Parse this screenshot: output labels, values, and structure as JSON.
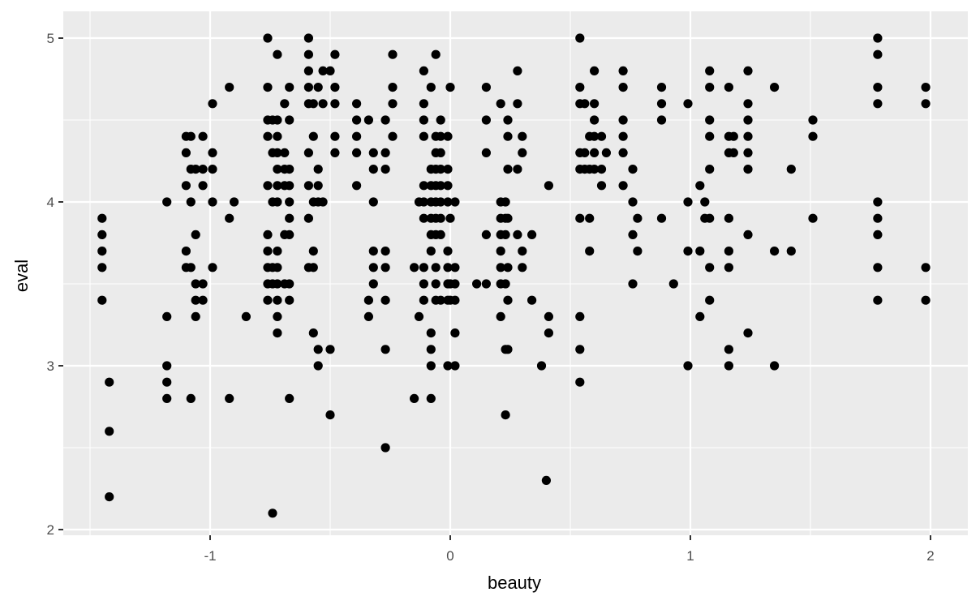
{
  "chart_data": {
    "type": "scatter",
    "title": "",
    "xlabel": "beauty",
    "ylabel": "eval",
    "xlim": [
      -1.65,
      2.15
    ],
    "ylim": [
      1.95,
      5.15
    ],
    "x_ticks": [
      -1,
      0,
      1,
      2
    ],
    "x_tick_labels": [
      "-1",
      "0",
      "1",
      "2"
    ],
    "y_ticks": [
      2,
      3,
      4,
      5
    ],
    "y_tick_labels": [
      "2",
      "3",
      "4",
      "5"
    ],
    "grid": true,
    "legend": "none",
    "colors": {
      "panel": "#ebebeb",
      "grid": "#ffffff",
      "point": "#000000",
      "tick_text": "#4d4d4d",
      "axis_title": "#000000"
    },
    "points": [
      [
        -1.45,
        3.9
      ],
      [
        -1.45,
        3.8
      ],
      [
        -1.45,
        3.7
      ],
      [
        -1.45,
        3.6
      ],
      [
        -1.45,
        3.4
      ],
      [
        -1.42,
        2.9
      ],
      [
        -1.42,
        2.6
      ],
      [
        -1.42,
        2.2
      ],
      [
        -1.18,
        4.0
      ],
      [
        -1.18,
        3.3
      ],
      [
        -1.18,
        3.0
      ],
      [
        -1.18,
        2.9
      ],
      [
        -1.18,
        2.8
      ],
      [
        -1.1,
        4.4
      ],
      [
        -1.1,
        4.3
      ],
      [
        -1.1,
        4.1
      ],
      [
        -1.1,
        3.7
      ],
      [
        -1.1,
        3.6
      ],
      [
        -1.08,
        4.4
      ],
      [
        -1.08,
        4.2
      ],
      [
        -1.08,
        4.0
      ],
      [
        -1.08,
        3.6
      ],
      [
        -1.08,
        2.8
      ],
      [
        -1.06,
        4.2
      ],
      [
        -1.06,
        3.8
      ],
      [
        -1.06,
        3.5
      ],
      [
        -1.06,
        3.4
      ],
      [
        -1.06,
        3.3
      ],
      [
        -1.03,
        4.4
      ],
      [
        -1.03,
        4.2
      ],
      [
        -1.03,
        4.1
      ],
      [
        -1.03,
        3.5
      ],
      [
        -1.03,
        3.4
      ],
      [
        -0.99,
        4.6
      ],
      [
        -0.99,
        4.3
      ],
      [
        -0.99,
        4.2
      ],
      [
        -0.99,
        4.0
      ],
      [
        -0.99,
        3.6
      ],
      [
        -0.92,
        4.7
      ],
      [
        -0.92,
        3.9
      ],
      [
        -0.92,
        2.8
      ],
      [
        -0.9,
        4.0
      ],
      [
        -0.85,
        3.3
      ],
      [
        -0.76,
        5.0
      ],
      [
        -0.76,
        4.7
      ],
      [
        -0.76,
        4.5
      ],
      [
        -0.76,
        4.4
      ],
      [
        -0.76,
        4.1
      ],
      [
        -0.76,
        3.8
      ],
      [
        -0.76,
        3.7
      ],
      [
        -0.76,
        3.6
      ],
      [
        -0.76,
        3.5
      ],
      [
        -0.76,
        3.4
      ],
      [
        -0.74,
        4.5
      ],
      [
        -0.74,
        4.3
      ],
      [
        -0.74,
        4.0
      ],
      [
        -0.74,
        3.6
      ],
      [
        -0.74,
        3.5
      ],
      [
        -0.74,
        2.1
      ],
      [
        -0.72,
        4.9
      ],
      [
        -0.72,
        4.5
      ],
      [
        -0.72,
        4.4
      ],
      [
        -0.72,
        4.3
      ],
      [
        -0.72,
        4.2
      ],
      [
        -0.72,
        4.1
      ],
      [
        -0.72,
        4.0
      ],
      [
        -0.72,
        3.7
      ],
      [
        -0.72,
        3.6
      ],
      [
        -0.72,
        3.5
      ],
      [
        -0.72,
        3.4
      ],
      [
        -0.72,
        3.3
      ],
      [
        -0.72,
        3.2
      ],
      [
        -0.69,
        4.6
      ],
      [
        -0.69,
        4.3
      ],
      [
        -0.69,
        4.2
      ],
      [
        -0.69,
        4.1
      ],
      [
        -0.69,
        3.8
      ],
      [
        -0.69,
        3.5
      ],
      [
        -0.67,
        4.7
      ],
      [
        -0.67,
        4.5
      ],
      [
        -0.67,
        4.2
      ],
      [
        -0.67,
        4.1
      ],
      [
        -0.67,
        4.0
      ],
      [
        -0.67,
        3.9
      ],
      [
        -0.67,
        3.8
      ],
      [
        -0.67,
        3.5
      ],
      [
        -0.67,
        3.4
      ],
      [
        -0.67,
        2.8
      ],
      [
        -0.59,
        5.0
      ],
      [
        -0.59,
        4.9
      ],
      [
        -0.59,
        4.8
      ],
      [
        -0.59,
        4.7
      ],
      [
        -0.59,
        4.6
      ],
      [
        -0.59,
        4.3
      ],
      [
        -0.59,
        4.1
      ],
      [
        -0.59,
        3.9
      ],
      [
        -0.59,
        3.6
      ],
      [
        -0.57,
        4.6
      ],
      [
        -0.57,
        4.4
      ],
      [
        -0.57,
        4.0
      ],
      [
        -0.57,
        3.7
      ],
      [
        -0.57,
        3.6
      ],
      [
        -0.57,
        3.2
      ],
      [
        -0.55,
        4.7
      ],
      [
        -0.55,
        4.2
      ],
      [
        -0.55,
        4.1
      ],
      [
        -0.55,
        4.0
      ],
      [
        -0.55,
        3.1
      ],
      [
        -0.55,
        3.0
      ],
      [
        -0.53,
        4.8
      ],
      [
        -0.53,
        4.6
      ],
      [
        -0.53,
        4.0
      ],
      [
        -0.5,
        4.8
      ],
      [
        -0.5,
        3.1
      ],
      [
        -0.5,
        2.7
      ],
      [
        -0.48,
        4.9
      ],
      [
        -0.48,
        4.7
      ],
      [
        -0.48,
        4.6
      ],
      [
        -0.48,
        4.4
      ],
      [
        -0.48,
        4.3
      ],
      [
        -0.39,
        4.6
      ],
      [
        -0.39,
        4.5
      ],
      [
        -0.39,
        4.4
      ],
      [
        -0.39,
        4.3
      ],
      [
        -0.39,
        4.1
      ],
      [
        -0.34,
        4.5
      ],
      [
        -0.34,
        3.4
      ],
      [
        -0.34,
        3.3
      ],
      [
        -0.32,
        4.3
      ],
      [
        -0.32,
        4.2
      ],
      [
        -0.32,
        4.0
      ],
      [
        -0.32,
        3.7
      ],
      [
        -0.32,
        3.6
      ],
      [
        -0.32,
        3.5
      ],
      [
        -0.27,
        4.5
      ],
      [
        -0.27,
        4.3
      ],
      [
        -0.27,
        4.2
      ],
      [
        -0.27,
        3.7
      ],
      [
        -0.27,
        3.6
      ],
      [
        -0.27,
        3.4
      ],
      [
        -0.27,
        3.1
      ],
      [
        -0.27,
        2.5
      ],
      [
        -0.24,
        4.9
      ],
      [
        -0.24,
        4.7
      ],
      [
        -0.24,
        4.6
      ],
      [
        -0.24,
        4.4
      ],
      [
        -0.15,
        3.6
      ],
      [
        -0.15,
        2.8
      ],
      [
        -0.13,
        4.0
      ],
      [
        -0.13,
        3.3
      ],
      [
        -0.11,
        4.8
      ],
      [
        -0.11,
        4.6
      ],
      [
        -0.11,
        4.5
      ],
      [
        -0.11,
        4.4
      ],
      [
        -0.11,
        4.1
      ],
      [
        -0.11,
        4.0
      ],
      [
        -0.11,
        3.9
      ],
      [
        -0.11,
        3.6
      ],
      [
        -0.11,
        3.5
      ],
      [
        -0.11,
        3.4
      ],
      [
        -0.08,
        4.7
      ],
      [
        -0.08,
        4.2
      ],
      [
        -0.08,
        4.1
      ],
      [
        -0.08,
        4.0
      ],
      [
        -0.08,
        3.9
      ],
      [
        -0.08,
        3.8
      ],
      [
        -0.08,
        3.7
      ],
      [
        -0.08,
        3.2
      ],
      [
        -0.08,
        3.1
      ],
      [
        -0.08,
        3.0
      ],
      [
        -0.08,
        2.8
      ],
      [
        -0.06,
        4.9
      ],
      [
        -0.06,
        4.4
      ],
      [
        -0.06,
        4.3
      ],
      [
        -0.06,
        4.2
      ],
      [
        -0.06,
        4.1
      ],
      [
        -0.06,
        4.0
      ],
      [
        -0.06,
        3.9
      ],
      [
        -0.06,
        3.8
      ],
      [
        -0.06,
        3.6
      ],
      [
        -0.06,
        3.5
      ],
      [
        -0.06,
        3.4
      ],
      [
        -0.04,
        4.5
      ],
      [
        -0.04,
        4.4
      ],
      [
        -0.04,
        4.3
      ],
      [
        -0.04,
        4.2
      ],
      [
        -0.04,
        4.1
      ],
      [
        -0.04,
        4.0
      ],
      [
        -0.04,
        3.9
      ],
      [
        -0.04,
        3.8
      ],
      [
        -0.04,
        3.4
      ],
      [
        -0.01,
        4.4
      ],
      [
        -0.01,
        4.2
      ],
      [
        -0.01,
        4.1
      ],
      [
        -0.01,
        4.0
      ],
      [
        -0.01,
        3.7
      ],
      [
        -0.01,
        3.6
      ],
      [
        -0.01,
        3.5
      ],
      [
        -0.01,
        3.4
      ],
      [
        -0.01,
        3.0
      ],
      [
        0.0,
        4.7
      ],
      [
        0.0,
        3.9
      ],
      [
        0.0,
        3.5
      ],
      [
        0.0,
        3.4
      ],
      [
        0.02,
        4.0
      ],
      [
        0.02,
        3.6
      ],
      [
        0.02,
        3.5
      ],
      [
        0.02,
        3.4
      ],
      [
        0.02,
        3.2
      ],
      [
        0.02,
        3.0
      ],
      [
        0.11,
        3.5
      ],
      [
        0.15,
        4.7
      ],
      [
        0.15,
        4.5
      ],
      [
        0.15,
        4.3
      ],
      [
        0.15,
        3.8
      ],
      [
        0.15,
        3.5
      ],
      [
        0.21,
        4.6
      ],
      [
        0.21,
        4.0
      ],
      [
        0.21,
        3.9
      ],
      [
        0.21,
        3.8
      ],
      [
        0.21,
        3.7
      ],
      [
        0.21,
        3.6
      ],
      [
        0.21,
        3.5
      ],
      [
        0.21,
        3.3
      ],
      [
        0.23,
        4.0
      ],
      [
        0.23,
        3.9
      ],
      [
        0.23,
        3.8
      ],
      [
        0.23,
        3.5
      ],
      [
        0.23,
        3.1
      ],
      [
        0.23,
        2.7
      ],
      [
        0.24,
        4.5
      ],
      [
        0.24,
        4.4
      ],
      [
        0.24,
        4.2
      ],
      [
        0.24,
        3.9
      ],
      [
        0.24,
        3.6
      ],
      [
        0.24,
        3.4
      ],
      [
        0.24,
        3.1
      ],
      [
        0.28,
        4.6
      ],
      [
        0.28,
        4.8
      ],
      [
        0.28,
        4.2
      ],
      [
        0.28,
        3.8
      ],
      [
        0.3,
        4.4
      ],
      [
        0.3,
        4.3
      ],
      [
        0.3,
        3.7
      ],
      [
        0.3,
        3.6
      ],
      [
        0.34,
        3.8
      ],
      [
        0.34,
        3.4
      ],
      [
        0.38,
        3.0
      ],
      [
        0.4,
        2.3
      ],
      [
        0.41,
        4.1
      ],
      [
        0.41,
        3.3
      ],
      [
        0.41,
        3.2
      ],
      [
        0.54,
        5.0
      ],
      [
        0.54,
        4.7
      ],
      [
        0.54,
        4.6
      ],
      [
        0.54,
        4.3
      ],
      [
        0.54,
        4.2
      ],
      [
        0.54,
        3.9
      ],
      [
        0.54,
        3.3
      ],
      [
        0.54,
        3.1
      ],
      [
        0.54,
        2.9
      ],
      [
        0.56,
        4.3
      ],
      [
        0.56,
        4.2
      ],
      [
        0.56,
        4.6
      ],
      [
        0.58,
        4.4
      ],
      [
        0.58,
        4.2
      ],
      [
        0.58,
        3.9
      ],
      [
        0.58,
        3.7
      ],
      [
        0.6,
        4.8
      ],
      [
        0.6,
        4.6
      ],
      [
        0.6,
        4.5
      ],
      [
        0.6,
        4.4
      ],
      [
        0.6,
        4.3
      ],
      [
        0.6,
        4.2
      ],
      [
        0.63,
        4.4
      ],
      [
        0.63,
        4.2
      ],
      [
        0.63,
        4.1
      ],
      [
        0.65,
        4.3
      ],
      [
        0.72,
        4.8
      ],
      [
        0.72,
        4.7
      ],
      [
        0.72,
        4.5
      ],
      [
        0.72,
        4.4
      ],
      [
        0.72,
        4.3
      ],
      [
        0.72,
        4.1
      ],
      [
        0.76,
        4.2
      ],
      [
        0.76,
        4.0
      ],
      [
        0.76,
        3.8
      ],
      [
        0.76,
        3.5
      ],
      [
        0.78,
        3.9
      ],
      [
        0.78,
        3.7
      ],
      [
        0.88,
        4.7
      ],
      [
        0.88,
        4.6
      ],
      [
        0.88,
        4.5
      ],
      [
        0.88,
        3.9
      ],
      [
        0.93,
        3.5
      ],
      [
        0.99,
        4.6
      ],
      [
        0.99,
        4.0
      ],
      [
        0.99,
        3.7
      ],
      [
        0.99,
        3.0
      ],
      [
        1.04,
        4.1
      ],
      [
        1.04,
        3.7
      ],
      [
        1.04,
        3.3
      ],
      [
        1.06,
        4.0
      ],
      [
        1.06,
        3.9
      ],
      [
        1.08,
        4.8
      ],
      [
        1.08,
        4.7
      ],
      [
        1.08,
        4.5
      ],
      [
        1.08,
        4.4
      ],
      [
        1.08,
        4.2
      ],
      [
        1.08,
        3.9
      ],
      [
        1.08,
        3.6
      ],
      [
        1.08,
        3.4
      ],
      [
        1.16,
        4.7
      ],
      [
        1.16,
        4.4
      ],
      [
        1.16,
        4.3
      ],
      [
        1.16,
        3.9
      ],
      [
        1.16,
        3.7
      ],
      [
        1.16,
        3.6
      ],
      [
        1.16,
        3.1
      ],
      [
        1.16,
        3.0
      ],
      [
        1.18,
        4.4
      ],
      [
        1.18,
        4.3
      ],
      [
        1.24,
        4.8
      ],
      [
        1.24,
        4.6
      ],
      [
        1.24,
        4.5
      ],
      [
        1.24,
        4.4
      ],
      [
        1.24,
        4.3
      ],
      [
        1.24,
        4.2
      ],
      [
        1.24,
        3.8
      ],
      [
        1.24,
        3.2
      ],
      [
        1.35,
        4.7
      ],
      [
        1.35,
        3.7
      ],
      [
        1.35,
        3.0
      ],
      [
        1.42,
        4.2
      ],
      [
        1.42,
        3.7
      ],
      [
        1.51,
        4.5
      ],
      [
        1.51,
        4.4
      ],
      [
        1.51,
        3.9
      ],
      [
        1.78,
        5.0
      ],
      [
        1.78,
        4.9
      ],
      [
        1.78,
        4.7
      ],
      [
        1.78,
        4.6
      ],
      [
        1.78,
        4.0
      ],
      [
        1.78,
        3.9
      ],
      [
        1.78,
        3.8
      ],
      [
        1.78,
        3.6
      ],
      [
        1.78,
        3.4
      ],
      [
        1.98,
        4.7
      ],
      [
        1.98,
        4.6
      ],
      [
        1.98,
        3.6
      ],
      [
        1.98,
        3.4
      ]
    ]
  }
}
